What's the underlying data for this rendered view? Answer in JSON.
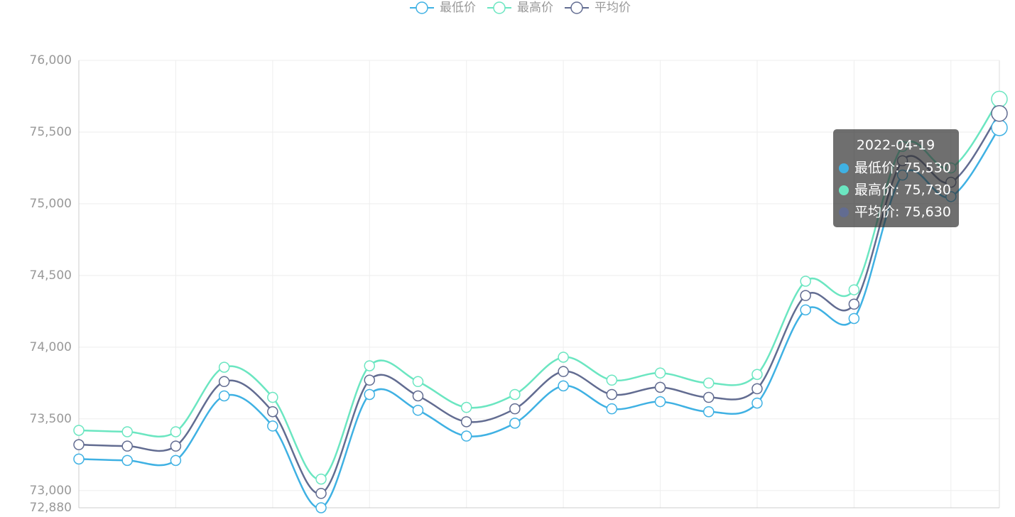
{
  "chart_data": {
    "type": "line",
    "legend": [
      "最低价",
      "最高价",
      "平均价"
    ],
    "categories": [
      null,
      null,
      null,
      null,
      null,
      null,
      null,
      null,
      null,
      null,
      null,
      null,
      null,
      null,
      null,
      null,
      null,
      null,
      null,
      "2022-04-19"
    ],
    "series": [
      {
        "name": "最低价",
        "color": "#3fb1e3",
        "values": [
          73220,
          73210,
          73210,
          73660,
          73450,
          72880,
          73670,
          73560,
          73380,
          73470,
          73730,
          73570,
          73620,
          73550,
          73610,
          74260,
          74200,
          75200,
          75050,
          75530
        ]
      },
      {
        "name": "最高价",
        "color": "#6be6c1",
        "values": [
          73420,
          73410,
          73410,
          73860,
          73650,
          73080,
          73870,
          73760,
          73580,
          73670,
          73930,
          73770,
          73820,
          73750,
          73810,
          74460,
          74400,
          75400,
          75250,
          75730
        ]
      },
      {
        "name": "平均价",
        "color": "#626c91",
        "values": [
          73320,
          73310,
          73310,
          73760,
          73550,
          72980,
          73770,
          73660,
          73480,
          73570,
          73830,
          73670,
          73720,
          73650,
          73710,
          74360,
          74300,
          75300,
          75150,
          75630
        ]
      }
    ],
    "ylim": [
      72880,
      76000
    ],
    "yticks": [
      {
        "value": 72880,
        "label": "72,880"
      },
      {
        "value": 73000,
        "label": "73,000"
      },
      {
        "value": 73500,
        "label": "73,500"
      },
      {
        "value": 74000,
        "label": "74,000"
      },
      {
        "value": 74500,
        "label": "74,500"
      },
      {
        "value": 75000,
        "label": "75,000"
      },
      {
        "value": 75500,
        "label": "75,500"
      },
      {
        "value": 76000,
        "label": "76,000"
      }
    ],
    "grid": true,
    "smooth": true,
    "legend_position": "top",
    "tooltip": {
      "rows": [
        "最低价: 75,530",
        "最高价: 75,730",
        "平均价: 75,630"
      ]
    }
  }
}
